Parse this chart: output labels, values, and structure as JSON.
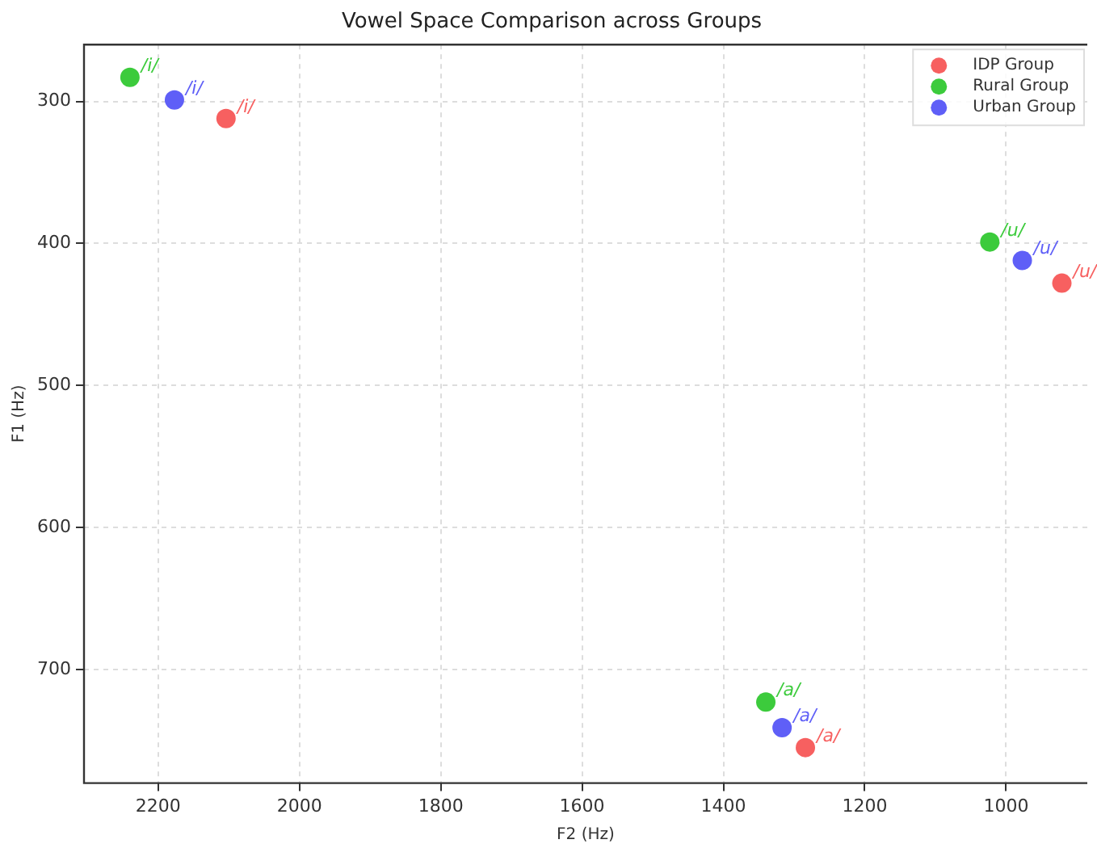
{
  "chart_data": {
    "type": "scatter",
    "title": "Vowel Space Comparison across Groups",
    "xlabel": "F2 (Hz)",
    "ylabel": "F1 (Hz)",
    "xlim": [
      2305,
      885
    ],
    "ylim": [
      780,
      260
    ],
    "xticks": [
      2200,
      2000,
      1800,
      1600,
      1400,
      1200,
      1000
    ],
    "yticks": [
      300,
      400,
      500,
      600,
      700
    ],
    "grid": true,
    "legend": "top right",
    "marker": "circle",
    "series": [
      {
        "name": "IDP Group",
        "color": "#f76060",
        "x": [
          2104,
          921,
          1284
        ],
        "values": [
          312,
          428,
          755
        ]
      },
      {
        "name": "Rural Group",
        "color": "#3ccb3c",
        "x": [
          2240,
          1023,
          1340
        ],
        "values": [
          283,
          399,
          723
        ]
      },
      {
        "name": "Urban Group",
        "color": "#5f5ff7",
        "x": [
          2177,
          977,
          1317
        ],
        "values": [
          299,
          412,
          741
        ]
      }
    ],
    "annotations": [
      {
        "text": "/i/",
        "x": 2104,
        "y": 312
      },
      {
        "text": "/u/",
        "x": 921,
        "y": 428
      },
      {
        "text": "/a/",
        "x": 1284,
        "y": 755
      },
      {
        "text": "/i/",
        "x": 2240,
        "y": 283
      },
      {
        "text": "/u/",
        "x": 1023,
        "y": 399
      },
      {
        "text": "/a/",
        "x": 1340,
        "y": 723
      },
      {
        "text": "/i/",
        "x": 2177,
        "y": 299
      },
      {
        "text": "/u/",
        "x": 977,
        "y": 412
      },
      {
        "text": "/a/",
        "x": 1317,
        "y": 741
      }
    ]
  }
}
